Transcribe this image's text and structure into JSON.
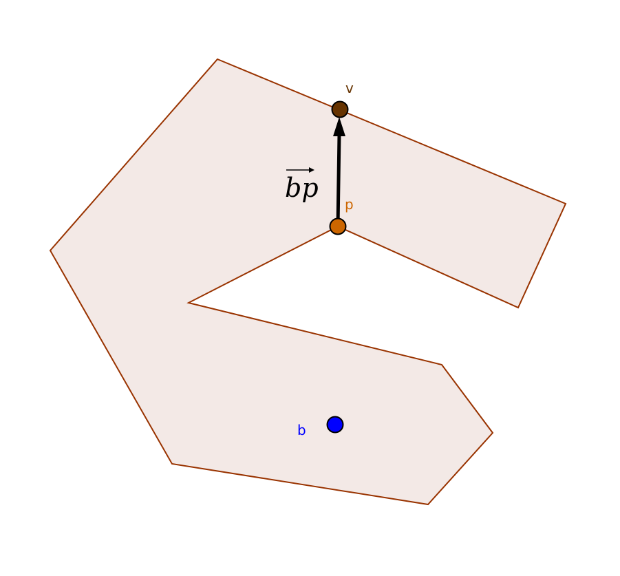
{
  "figure": {
    "description_free": true,
    "polygon": {
      "name": "polygon",
      "fill_color": "#f3e9e6",
      "stroke_color": "#993300"
    },
    "vector": {
      "from": "p",
      "to": "v",
      "label": "bp",
      "color": "#000000"
    },
    "points": [
      {
        "id": "v",
        "label": "v",
        "fill_color": "#663300",
        "label_color": "#663300"
      },
      {
        "id": "p",
        "label": "p",
        "fill_color": "#cc6600",
        "label_color": "#cc6600"
      },
      {
        "id": "b",
        "label": "b",
        "fill_color": "#0000ff",
        "label_color": "#0000ff"
      }
    ]
  }
}
